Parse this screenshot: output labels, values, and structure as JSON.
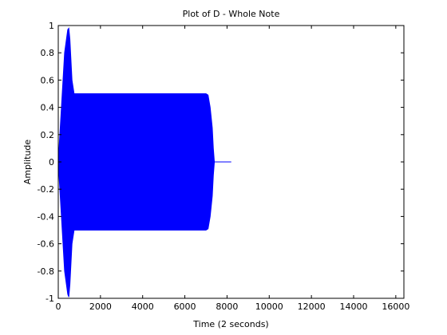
{
  "chart_data": {
    "type": "line",
    "title": "Plot of D - Whole Note",
    "xlabel": "Time (2 seconds)",
    "ylabel": "Amplitude",
    "xlim": [
      0,
      16384
    ],
    "ylim": [
      -1,
      1
    ],
    "xticks": [
      0,
      2000,
      4000,
      6000,
      8000,
      10000,
      12000,
      14000,
      16000
    ],
    "yticks": [
      -1,
      -0.8,
      -0.6,
      -0.4,
      -0.2,
      0,
      0.2,
      0.4,
      0.6,
      0.8,
      1
    ],
    "xtick_labels": [
      "0",
      "2000",
      "4000",
      "6000",
      "8000",
      "10000",
      "12000",
      "14000",
      "16000"
    ],
    "ytick_labels": [
      "-1",
      "-0.8",
      "-0.6",
      "-0.4",
      "-0.2",
      "0",
      "0.2",
      "0.4",
      "0.6",
      "0.8",
      "1"
    ],
    "grid": false,
    "series": [
      {
        "color": "#0000ff",
        "envelope": {
          "x": [
            0,
            150,
            300,
            450,
            500,
            550,
            650,
            750,
            850,
            1000,
            2000,
            4000,
            6000,
            7000,
            7100,
            7200,
            7300,
            7350,
            7400
          ],
          "upper": [
            0,
            0.4,
            0.8,
            0.97,
            0.98,
            0.9,
            0.6,
            0.5,
            0.5,
            0.5,
            0.5,
            0.5,
            0.5,
            0.5,
            0.49,
            0.4,
            0.25,
            0.1,
            0
          ],
          "lower": [
            0,
            -0.4,
            -0.8,
            -0.97,
            -0.99,
            -0.9,
            -0.6,
            -0.5,
            -0.5,
            -0.5,
            -0.5,
            -0.5,
            -0.5,
            -0.5,
            -0.49,
            -0.4,
            -0.25,
            -0.1,
            0
          ]
        },
        "tail": {
          "x": [
            7400,
            8200
          ],
          "y": [
            0,
            0
          ]
        }
      }
    ]
  }
}
